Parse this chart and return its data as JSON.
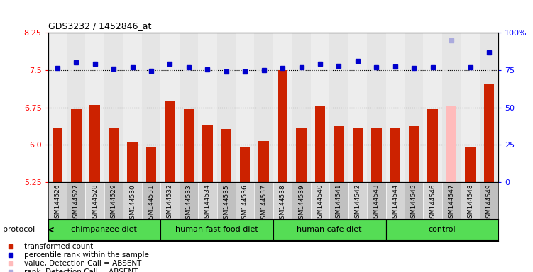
{
  "title": "GDS3232 / 1452846_at",
  "samples": [
    "GSM144526",
    "GSM144527",
    "GSM144528",
    "GSM144529",
    "GSM144530",
    "GSM144531",
    "GSM144532",
    "GSM144533",
    "GSM144534",
    "GSM144535",
    "GSM144536",
    "GSM144537",
    "GSM144538",
    "GSM144539",
    "GSM144540",
    "GSM144541",
    "GSM144542",
    "GSM144543",
    "GSM144544",
    "GSM144545",
    "GSM144546",
    "GSM144547",
    "GSM144548",
    "GSM144549"
  ],
  "bar_values": [
    6.35,
    6.72,
    6.8,
    6.35,
    6.07,
    5.97,
    6.88,
    6.72,
    6.4,
    6.32,
    5.97,
    6.08,
    7.5,
    6.35,
    6.78,
    6.38,
    6.35,
    6.35,
    6.35,
    6.38,
    6.72,
    6.78,
    5.97,
    7.23
  ],
  "dot_values": [
    7.54,
    7.65,
    7.63,
    7.52,
    7.55,
    7.49,
    7.63,
    7.56,
    7.51,
    7.47,
    7.47,
    7.5,
    7.54,
    7.55,
    7.63,
    7.58,
    7.68,
    7.56,
    7.57,
    7.54,
    7.55,
    8.1,
    7.56,
    7.85
  ],
  "bar_absent": [
    false,
    false,
    false,
    false,
    false,
    false,
    false,
    false,
    false,
    false,
    false,
    false,
    false,
    false,
    false,
    false,
    false,
    false,
    false,
    false,
    false,
    true,
    false,
    false
  ],
  "dot_absent": [
    false,
    false,
    false,
    false,
    false,
    false,
    false,
    false,
    false,
    false,
    false,
    false,
    false,
    false,
    false,
    false,
    false,
    false,
    false,
    false,
    false,
    true,
    false,
    false
  ],
  "groups": [
    {
      "label": "chimpanzee diet",
      "start": 0,
      "end": 6
    },
    {
      "label": "human fast food diet",
      "start": 6,
      "end": 12
    },
    {
      "label": "human cafe diet",
      "start": 12,
      "end": 18
    },
    {
      "label": "control",
      "start": 18,
      "end": 24
    }
  ],
  "bar_color": "#cc2200",
  "bar_absent_color": "#ffbbbb",
  "dot_color": "#0000cc",
  "dot_absent_color": "#aaaadd",
  "ylim_left": [
    5.25,
    8.25
  ],
  "yticks_left": [
    5.25,
    6.0,
    6.75,
    7.5,
    8.25
  ],
  "ylim_right": [
    0,
    100
  ],
  "yticks_right": [
    0,
    25,
    50,
    75,
    100
  ],
  "group_color": "#55dd55",
  "col_bg_even": "#d4d4d4",
  "col_bg_odd": "#c0c0c0",
  "legend_items": [
    {
      "color": "#cc2200",
      "label": "transformed count"
    },
    {
      "color": "#0000cc",
      "label": "percentile rank within the sample"
    },
    {
      "color": "#ffbbbb",
      "label": "value, Detection Call = ABSENT"
    },
    {
      "color": "#aaaadd",
      "label": "rank, Detection Call = ABSENT"
    }
  ]
}
